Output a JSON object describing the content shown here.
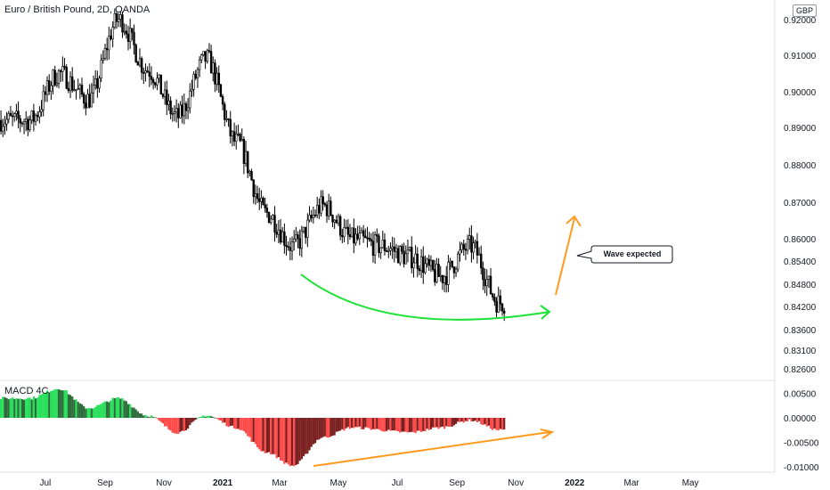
{
  "header": {
    "title": "Euro / British Pound, 2D, OANDA",
    "currency": "GBP"
  },
  "annotation": {
    "callout_text": "Wave expected"
  },
  "colors": {
    "candle": "#000000",
    "curve_arrow": "#1be234",
    "projection_arrow": "#ff9a1f",
    "macd_up_strong": "#26e05a",
    "macd_up_weak": "#2e6b3a",
    "macd_down_strong": "#ff4a4a",
    "macd_down_weak": "#7a1f1f",
    "axis_text": "#131722",
    "divider": "#e0e3eb"
  },
  "chart_data": [
    {
      "type": "candlestick",
      "title": "Euro / British Pound, 2D, OANDA",
      "x_ticks": [
        "Jul",
        "Sep",
        "Nov",
        "2021",
        "Mar",
        "May",
        "Jul",
        "Sep",
        "Nov",
        "2022",
        "Mar",
        "May"
      ],
      "y_ticks": [
        "0.92000",
        "0.91000",
        "0.90000",
        "0.89000",
        "0.88000",
        "0.87000",
        "0.86000",
        "0.85400",
        "0.84800",
        "0.84200",
        "0.83600",
        "0.83100",
        "0.82600"
      ],
      "y_scale": "log",
      "ylim": [
        0.822,
        0.9245
      ],
      "series": [
        {
          "interval": "2D",
          "key_points": [
            {
              "x": "2020-06",
              "y": 0.892
            },
            {
              "x": "2020-07",
              "y": 0.905
            },
            {
              "x": "2020-08",
              "y": 0.898
            },
            {
              "x": "2020-09",
              "y": 0.92
            },
            {
              "x": "2020-10",
              "y": 0.906
            },
            {
              "x": "2020-11",
              "y": 0.893
            },
            {
              "x": "2020-12",
              "y": 0.909
            },
            {
              "x": "2021-01",
              "y": 0.886
            },
            {
              "x": "2021-02",
              "y": 0.867
            },
            {
              "x": "2021-03",
              "y": 0.858
            },
            {
              "x": "2021-04",
              "y": 0.869
            },
            {
              "x": "2021-05",
              "y": 0.86
            },
            {
              "x": "2021-06",
              "y": 0.858
            },
            {
              "x": "2021-07",
              "y": 0.855
            },
            {
              "x": "2021-08",
              "y": 0.85
            },
            {
              "x": "2021-09",
              "y": 0.858
            },
            {
              "x": "2021-10",
              "y": 0.843
            }
          ]
        }
      ]
    },
    {
      "type": "bar",
      "title": "MACD 4C",
      "y_ticks": [
        "0.00500",
        "0.00000",
        "-0.00500",
        "-0.01000"
      ],
      "ylim": [
        -0.011,
        0.0075
      ],
      "series": [
        {
          "name": "MACD 4C",
          "key_points": [
            {
              "x": "2020-06",
              "y": 0.004
            },
            {
              "x": "2020-07",
              "y": 0.006
            },
            {
              "x": "2020-08",
              "y": 0.002
            },
            {
              "x": "2020-09",
              "y": 0.004
            },
            {
              "x": "2020-10",
              "y": 0.0005
            },
            {
              "x": "2020-11",
              "y": -0.003
            },
            {
              "x": "2020-12",
              "y": 0.0005
            },
            {
              "x": "2021-01",
              "y": -0.002
            },
            {
              "x": "2021-02",
              "y": -0.007
            },
            {
              "x": "2021-03",
              "y": -0.0098
            },
            {
              "x": "2021-04",
              "y": -0.004
            },
            {
              "x": "2021-05",
              "y": -0.002
            },
            {
              "x": "2021-07",
              "y": -0.003
            },
            {
              "x": "2021-08",
              "y": -0.002
            },
            {
              "x": "2021-09",
              "y": -0.0005
            },
            {
              "x": "2021-10",
              "y": -0.0025
            }
          ]
        }
      ]
    }
  ]
}
